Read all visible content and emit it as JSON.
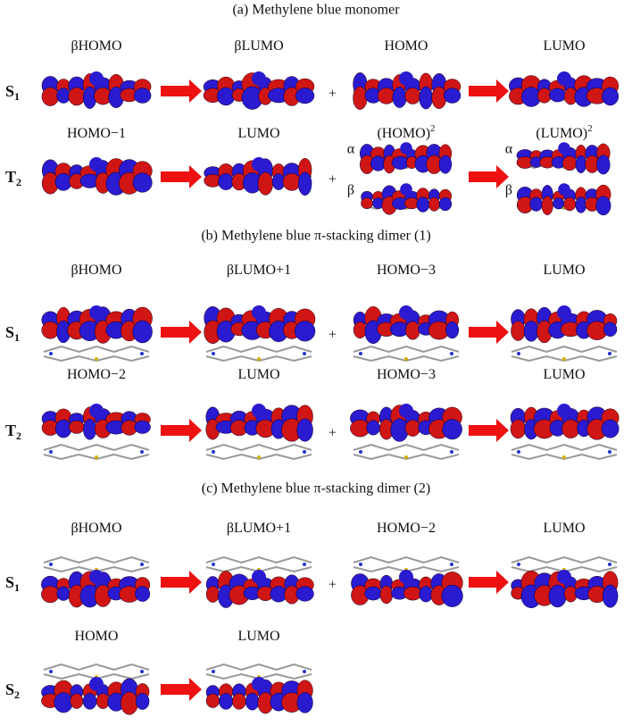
{
  "plus": "+",
  "sections": [
    {
      "title": "(a) Methylene blue monomer",
      "rows": [
        {
          "state": {
            "main": "S",
            "sub": "1"
          },
          "orbitals": [
            {
              "label": "βHOMO"
            },
            {
              "label": "βLUMO"
            },
            {
              "label": "HOMO"
            },
            {
              "label": "LUMO"
            }
          ]
        },
        {
          "state": {
            "main": "T",
            "sub": "2"
          },
          "orbitals": [
            {
              "label": "HOMO−1"
            },
            {
              "label": "LUMO"
            },
            {
              "label": "(HOMO)",
              "power": "2",
              "spins": [
                "α",
                "β"
              ]
            },
            {
              "label": "(LUMO)",
              "power": "2",
              "spins": [
                "α",
                "β"
              ]
            }
          ]
        }
      ]
    },
    {
      "title": "(b) Methylene blue π-stacking dimer (1)",
      "rows": [
        {
          "state": {
            "main": "S",
            "sub": "1"
          },
          "orbitals": [
            {
              "label": "βHOMO"
            },
            {
              "label": "βLUMO+1"
            },
            {
              "label": "HOMO−3"
            },
            {
              "label": "LUMO"
            }
          ]
        },
        {
          "state": {
            "main": "T",
            "sub": "2"
          },
          "orbitals": [
            {
              "label": "HOMO−2"
            },
            {
              "label": "LUMO"
            },
            {
              "label": "HOMO−3"
            },
            {
              "label": "LUMO"
            }
          ]
        }
      ]
    },
    {
      "title": "(c) Methylene blue π-stacking dimer (2)",
      "rows": [
        {
          "state": {
            "main": "S",
            "sub": "1"
          },
          "orbitals": [
            {
              "label": "βHOMO"
            },
            {
              "label": "βLUMO+1"
            },
            {
              "label": "HOMO−2"
            },
            {
              "label": "LUMO"
            }
          ]
        },
        {
          "state": {
            "main": "S",
            "sub": "2"
          },
          "orbitals": [
            {
              "label": "HOMO"
            },
            {
              "label": "LUMO"
            }
          ]
        }
      ]
    }
  ]
}
